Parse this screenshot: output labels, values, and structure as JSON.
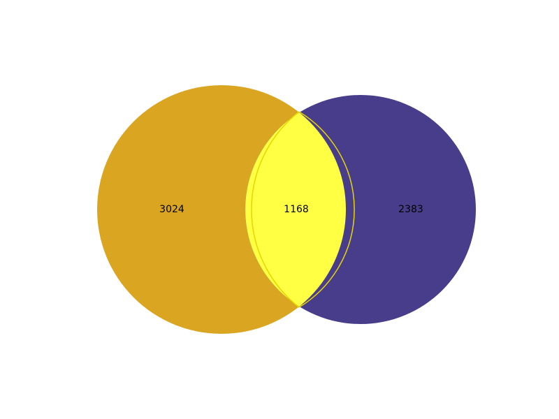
{
  "venn": {
    "sets": [
      {
        "id": "left",
        "color": "#DAA520"
      },
      {
        "id": "right",
        "color": "#483D8B"
      }
    ],
    "overlap_color": "#FFFF44",
    "overlap_outline_color": "#E6D600",
    "regions": {
      "left_only": "3024",
      "intersection": "1168",
      "right_only": "2383"
    }
  }
}
